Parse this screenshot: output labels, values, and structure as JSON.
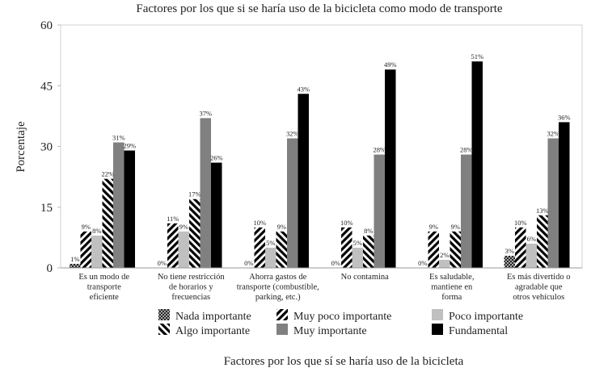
{
  "chart_data": {
    "type": "bar",
    "title": "Factores por los que si se haría uso de la bicicleta como modo de transporte",
    "xlabel": "Factores por los que sí se haría uso de la bicicleta",
    "ylabel": "Porcentaje",
    "ylim": [
      0,
      60
    ],
    "yticks": [
      0,
      15,
      30,
      45,
      60
    ],
    "grid": false,
    "legend_position": "bottom",
    "categories": [
      [
        "Es un modo de",
        "transporte",
        "eficiente"
      ],
      [
        "No tiene restricción",
        "de horarios y",
        "frecuencias"
      ],
      [
        "Ahorra gastos de",
        "transporte (combustible,",
        "parking, etc.)"
      ],
      [
        "No contamina"
      ],
      [
        "Es saludable,",
        "mantiene en",
        "forma"
      ],
      [
        "Es más divertido o",
        "agradable que",
        "otros vehículos"
      ]
    ],
    "series": [
      {
        "name": "Nada importante",
        "pattern": "crosshatch",
        "color": "#333333",
        "values": [
          1,
          0,
          0,
          0,
          0,
          3
        ],
        "labels": [
          "1%",
          "0%",
          "0%",
          "0%",
          "0%",
          "3%"
        ]
      },
      {
        "name": "Muy poco importante",
        "pattern": "wide-backslash",
        "color": "#000000",
        "values": [
          9,
          11,
          10,
          10,
          9,
          10
        ],
        "labels": [
          "9%",
          "11%",
          "10%",
          "10%",
          "9%",
          "10%"
        ]
      },
      {
        "name": "Poco importante",
        "pattern": "solid",
        "color": "#c0c0c0",
        "values": [
          8,
          9,
          5,
          5,
          2,
          6
        ],
        "labels": [
          "8%",
          "9%",
          "5%",
          "5%",
          "2%",
          "6%"
        ]
      },
      {
        "name": "Algo importante",
        "pattern": "wide-slash",
        "color": "#000000",
        "values": [
          22,
          17,
          9,
          8,
          9,
          13
        ],
        "labels": [
          "22%",
          "17%",
          "9%",
          "8%",
          "9%",
          "13%"
        ]
      },
      {
        "name": "Muy importante",
        "pattern": "solid",
        "color": "#808080",
        "values": [
          31,
          37,
          32,
          28,
          28,
          32
        ],
        "labels": [
          "31%",
          "37%",
          "32%",
          "28%",
          "28%",
          "32%"
        ]
      },
      {
        "name": "Fundamental",
        "pattern": "solid",
        "color": "#000000",
        "values": [
          29,
          26,
          43,
          49,
          51,
          36
        ],
        "labels": [
          "29%",
          "26%",
          "43%",
          "49%",
          "51%",
          "36%"
        ]
      }
    ]
  }
}
